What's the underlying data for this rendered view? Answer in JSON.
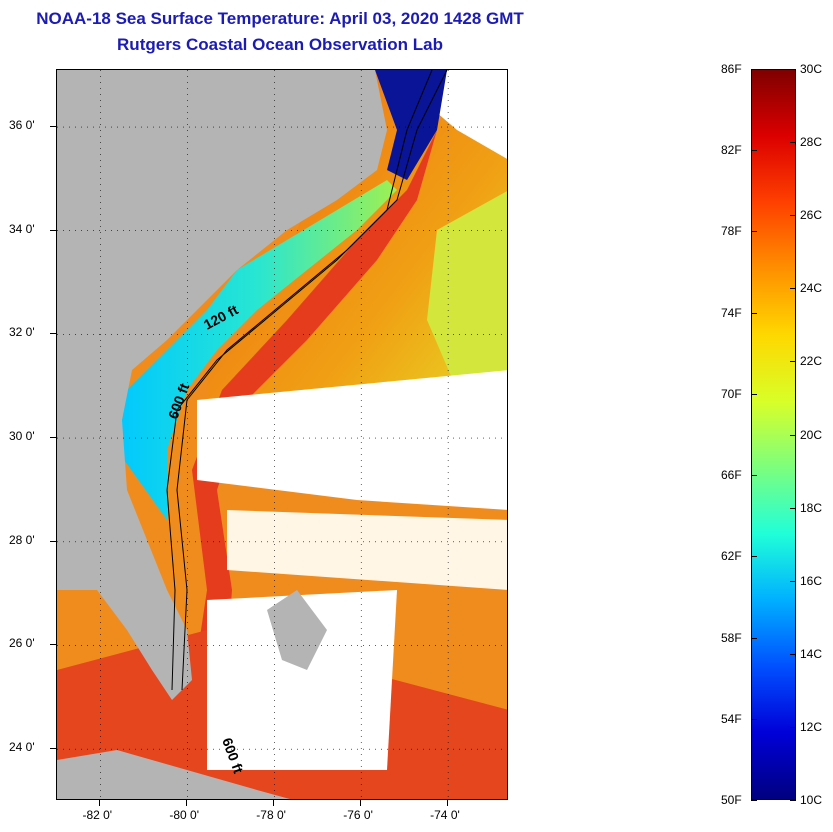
{
  "title": "NOAA-18 Sea Surface Temperature:  April 03, 2020 1428 GMT",
  "subtitle": "Rutgers Coastal Ocean Observation Lab",
  "map": {
    "lon_range": [
      -83.0,
      -72.6
    ],
    "lat_range": [
      23.0,
      37.1
    ],
    "lon_ticks": [
      {
        "value": -82,
        "label": "-82 0'"
      },
      {
        "value": -80,
        "label": "-80 0'"
      },
      {
        "value": -78,
        "label": "-78 0'"
      },
      {
        "value": -76,
        "label": "-76 0'"
      },
      {
        "value": -74,
        "label": "-74 0'"
      }
    ],
    "lat_ticks": [
      {
        "value": 24,
        "label": "24 0'"
      },
      {
        "value": 26,
        "label": "26 0'"
      },
      {
        "value": 28,
        "label": "28 0'"
      },
      {
        "value": 30,
        "label": "30 0'"
      },
      {
        "value": 32,
        "label": "32 0'"
      },
      {
        "value": 34,
        "label": "34 0'"
      },
      {
        "value": 36,
        "label": "36 0'"
      }
    ],
    "contour_labels": [
      {
        "text": "120 ft"
      },
      {
        "text": "600 ft"
      },
      {
        "text": "600 ft"
      }
    ],
    "colors": {
      "land": "#b4b4b4",
      "cloud": "#ffffff",
      "warm": "#e63c1e",
      "orange": "#f08c14",
      "yellow": "#e6e61e",
      "cold_blue": "#1e78ff",
      "deep_blue": "#0a1496"
    }
  },
  "colorbar": {
    "fahrenheit_labels": [
      "86F",
      "82F",
      "78F",
      "74F",
      "70F",
      "66F",
      "62F",
      "58F",
      "54F",
      "50F"
    ],
    "celsius_labels": [
      "30C",
      "28C",
      "26C",
      "24C",
      "22C",
      "20C",
      "18C",
      "16C",
      "14C",
      "12C",
      "10C"
    ],
    "colormap": [
      "#7f0000",
      "#dc0000",
      "#ff4000",
      "#ff9000",
      "#ffd800",
      "#d8ff28",
      "#7cff7c",
      "#20ffd8",
      "#00b0ff",
      "#0050ff",
      "#0000d8",
      "#00007f"
    ]
  }
}
